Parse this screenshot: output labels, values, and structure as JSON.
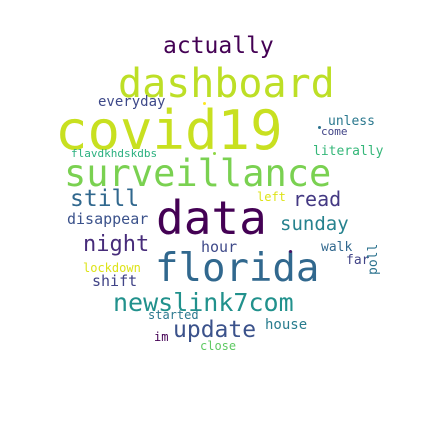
{
  "words": [
    {
      "text": "actually",
      "color": "#440154"
    },
    {
      "text": "dashboard",
      "color": "#bddf26"
    },
    {
      "text": "covid19",
      "color": "#c8e020"
    },
    {
      "text": "surveillance",
      "color": "#7ad151"
    },
    {
      "text": "data",
      "color": "#440154"
    },
    {
      "text": "florida",
      "color": "#31688e"
    },
    {
      "text": "newslink7com",
      "color": "#21918c"
    },
    {
      "text": "update",
      "color": "#3b528b"
    },
    {
      "text": "everyday",
      "color": "#3e4989"
    },
    {
      "text": "unless",
      "color": "#2a788e"
    },
    {
      "text": "come",
      "color": "#414487"
    },
    {
      "text": "flavdkhdskdbs",
      "color": "#2ab07f"
    },
    {
      "text": "literally",
      "color": "#35b779"
    },
    {
      "text": "still",
      "color": "#31688e"
    },
    {
      "text": "read",
      "color": "#443983"
    },
    {
      "text": "left",
      "color": "#dde318"
    },
    {
      "text": "sunday",
      "color": "#26828e"
    },
    {
      "text": "disappear",
      "color": "#3b528b"
    },
    {
      "text": "poll",
      "color": "#2c728e"
    },
    {
      "text": "night",
      "color": "#472c7a"
    },
    {
      "text": "hour",
      "color": "#3e4989"
    },
    {
      "text": "walk",
      "color": "#31688e"
    },
    {
      "text": "lockdown",
      "color": "#dde318"
    },
    {
      "text": "far",
      "color": "#414487"
    },
    {
      "text": "shift",
      "color": "#414487"
    },
    {
      "text": "started",
      "color": "#2a788e"
    },
    {
      "text": "house",
      "color": "#287c8e"
    },
    {
      "text": "im",
      "color": "#440154"
    },
    {
      "text": "close",
      "color": "#5ec962"
    }
  ],
  "dots": [
    {
      "color": "#fde725"
    },
    {
      "color": "#8fd744"
    },
    {
      "color": "#471164"
    },
    {
      "color": "#2c728e"
    }
  ]
}
